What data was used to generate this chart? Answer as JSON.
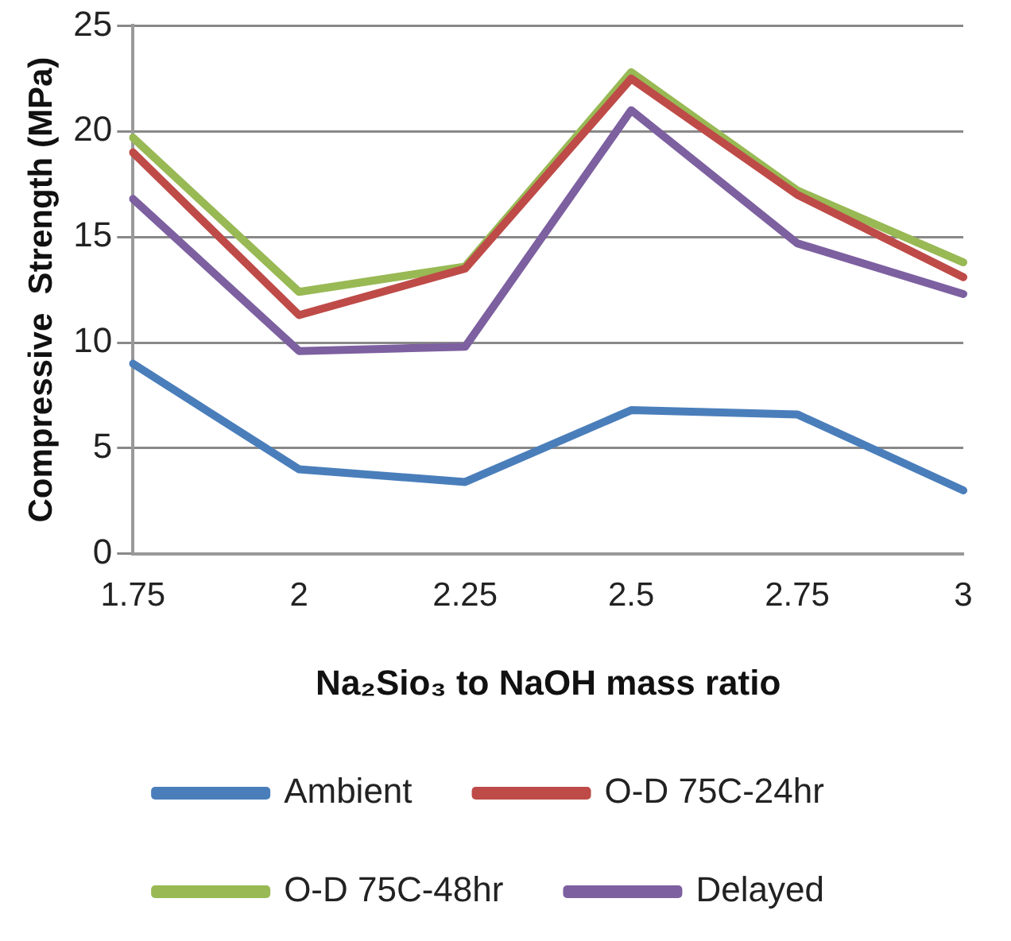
{
  "chart_data": {
    "type": "line",
    "xlabel": "Na₂Sio₃ to NaOH mass ratio",
    "ylabel": "Compressive  Strength (MPa)",
    "categories": [
      "1.75",
      "2",
      "2.25",
      "2.5",
      "2.75",
      "3"
    ],
    "ylim": [
      0,
      25
    ],
    "yticks": [
      0,
      5,
      10,
      15,
      20,
      25
    ],
    "grid": "y",
    "legend": "bottom",
    "marker": "none",
    "line_style": "solid",
    "series": [
      {
        "name": "Ambient",
        "color": "#4a7ebb",
        "values": [
          9.0,
          4.0,
          3.4,
          6.8,
          6.6,
          3.0
        ]
      },
      {
        "name": "O-D 75C-24hr",
        "color": "#be4b48",
        "values": [
          19.0,
          11.3,
          13.5,
          22.5,
          17.0,
          13.1
        ]
      },
      {
        "name": "O-D 75C-48hr",
        "color": "#98b954",
        "values": [
          19.7,
          12.4,
          13.6,
          22.8,
          17.2,
          13.8
        ]
      },
      {
        "name": "Delayed",
        "color": "#7d60a0",
        "values": [
          16.8,
          9.6,
          9.8,
          21.0,
          14.7,
          12.3
        ]
      }
    ]
  }
}
